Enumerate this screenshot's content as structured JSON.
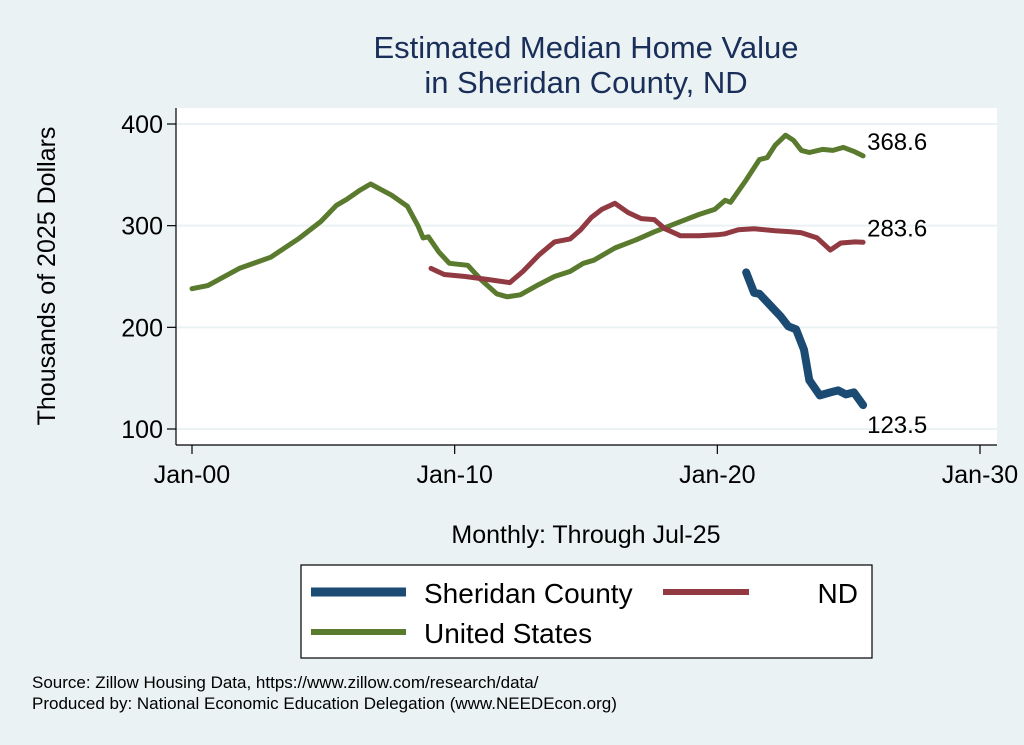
{
  "chart_data": {
    "type": "line",
    "title": [
      "Estimated Median Home Value",
      "in Sheridan County, ND"
    ],
    "xlabel": "Monthly: Through Jul-25",
    "ylabel": "Thousands of 2025 Dollars",
    "xlim": [
      2000,
      2030
    ],
    "ylim": [
      100,
      400
    ],
    "x_ticks": [
      {
        "value": 2000,
        "label": "Jan-00"
      },
      {
        "value": 2010,
        "label": "Jan-10"
      },
      {
        "value": 2020,
        "label": "Jan-20"
      },
      {
        "value": 2030,
        "label": "Jan-30"
      }
    ],
    "y_ticks": [
      {
        "value": 100,
        "label": "100"
      },
      {
        "value": 200,
        "label": "200"
      },
      {
        "value": 300,
        "label": "300"
      },
      {
        "value": 400,
        "label": "400"
      }
    ],
    "grid": true,
    "legend_position": "bottom",
    "series": [
      {
        "name": "Sheridan County",
        "color": "#1b4a72",
        "end_label": "123.5",
        "points": [
          [
            2021.1,
            254
          ],
          [
            2021.4,
            234
          ],
          [
            2021.6,
            233
          ],
          [
            2022.0,
            222
          ],
          [
            2022.4,
            211
          ],
          [
            2022.7,
            201
          ],
          [
            2023.0,
            198
          ],
          [
            2023.3,
            178
          ],
          [
            2023.5,
            148
          ],
          [
            2023.9,
            133
          ],
          [
            2024.3,
            136
          ],
          [
            2024.6,
            138
          ],
          [
            2024.9,
            134
          ],
          [
            2025.2,
            136
          ],
          [
            2025.55,
            123.5
          ]
        ]
      },
      {
        "name": "ND",
        "color": "#913a42",
        "end_label": "283.6",
        "points": [
          [
            2009.1,
            258
          ],
          [
            2009.6,
            252
          ],
          [
            2010.4,
            250
          ],
          [
            2011.3,
            247
          ],
          [
            2012.1,
            244
          ],
          [
            2012.6,
            255
          ],
          [
            2013.2,
            271
          ],
          [
            2013.8,
            284
          ],
          [
            2014.4,
            287
          ],
          [
            2014.8,
            296
          ],
          [
            2015.2,
            308
          ],
          [
            2015.6,
            316
          ],
          [
            2016.1,
            322
          ],
          [
            2016.6,
            313
          ],
          [
            2017.1,
            307
          ],
          [
            2017.6,
            306
          ],
          [
            2018.0,
            297
          ],
          [
            2018.6,
            290
          ],
          [
            2019.3,
            290
          ],
          [
            2020.0,
            291
          ],
          [
            2020.3,
            292
          ],
          [
            2020.8,
            296
          ],
          [
            2021.4,
            297
          ],
          [
            2022.2,
            295
          ],
          [
            2022.8,
            294
          ],
          [
            2023.2,
            293
          ],
          [
            2023.8,
            288
          ],
          [
            2024.3,
            276
          ],
          [
            2024.7,
            283
          ],
          [
            2025.25,
            284
          ],
          [
            2025.55,
            283.6
          ]
        ]
      },
      {
        "name": "United States",
        "color": "#5a7a2e",
        "end_label": "368.6",
        "points": [
          [
            2000.0,
            238
          ],
          [
            2000.6,
            241
          ],
          [
            2001.8,
            258
          ],
          [
            2003.0,
            269
          ],
          [
            2004.1,
            288
          ],
          [
            2004.9,
            304
          ],
          [
            2005.5,
            320
          ],
          [
            2005.9,
            326
          ],
          [
            2006.4,
            335
          ],
          [
            2006.8,
            341
          ],
          [
            2007.6,
            330
          ],
          [
            2008.2,
            319
          ],
          [
            2008.6,
            300
          ],
          [
            2008.8,
            288
          ],
          [
            2009.0,
            289
          ],
          [
            2009.4,
            274
          ],
          [
            2009.8,
            263
          ],
          [
            2010.5,
            261
          ],
          [
            2011.0,
            247
          ],
          [
            2011.6,
            233
          ],
          [
            2012.0,
            230
          ],
          [
            2012.5,
            232
          ],
          [
            2013.2,
            242
          ],
          [
            2013.8,
            250
          ],
          [
            2014.4,
            255
          ],
          [
            2014.9,
            263
          ],
          [
            2015.3,
            266
          ],
          [
            2016.1,
            278
          ],
          [
            2016.9,
            286
          ],
          [
            2017.6,
            294
          ],
          [
            2018.2,
            300
          ],
          [
            2018.6,
            304
          ],
          [
            2019.3,
            311
          ],
          [
            2019.9,
            316
          ],
          [
            2020.3,
            325
          ],
          [
            2020.5,
            323
          ],
          [
            2021.1,
            345
          ],
          [
            2021.6,
            365
          ],
          [
            2021.9,
            367
          ],
          [
            2022.2,
            379
          ],
          [
            2022.6,
            389
          ],
          [
            2022.9,
            384
          ],
          [
            2023.2,
            374
          ],
          [
            2023.5,
            372
          ],
          [
            2024.0,
            375
          ],
          [
            2024.4,
            374
          ],
          [
            2024.8,
            377
          ],
          [
            2025.2,
            373
          ],
          [
            2025.55,
            368.6
          ]
        ]
      }
    ]
  },
  "footer": {
    "source": "Source: Zillow Housing Data, https://www.zillow.com/research/data/",
    "producer": "Produced by: National Economic Education Delegation (www.NEEDEcon.org)"
  }
}
